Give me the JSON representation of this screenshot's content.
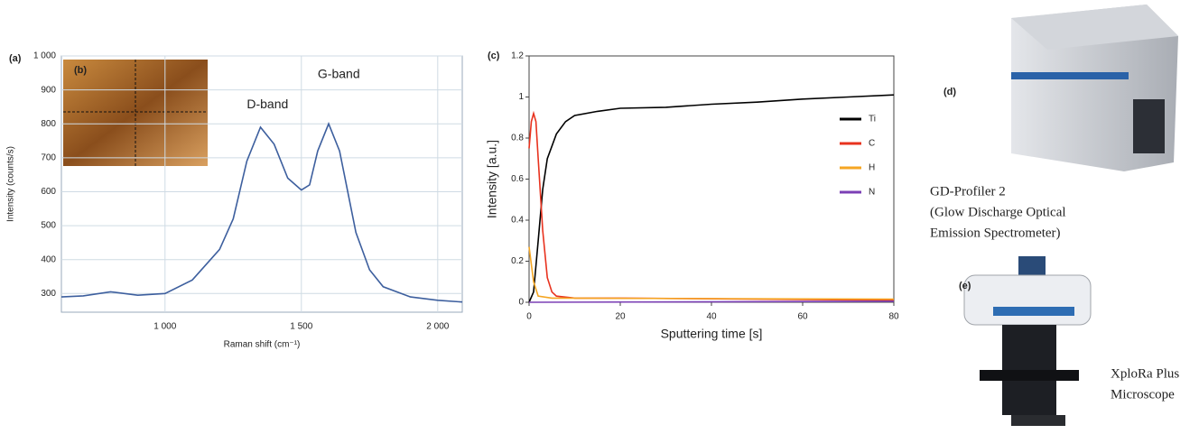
{
  "chart_data": [
    {
      "type": "line",
      "panel_label": "(a)",
      "inset_label": "(b)",
      "xlabel": "Raman shift (cm⁻¹)",
      "ylabel": "Intensity (counts/s)",
      "x": [
        620,
        700,
        800,
        900,
        1000,
        1100,
        1200,
        1250,
        1300,
        1350,
        1400,
        1450,
        1500,
        1530,
        1560,
        1600,
        1640,
        1700,
        1750,
        1800,
        1900,
        2000,
        2090
      ],
      "values": [
        290,
        293,
        305,
        295,
        300,
        340,
        430,
        520,
        690,
        790,
        740,
        640,
        605,
        620,
        720,
        800,
        720,
        480,
        370,
        320,
        290,
        280,
        275
      ],
      "color": "#3d5f9e",
      "xlim": [
        620,
        2090
      ],
      "ylim": [
        245,
        1000
      ],
      "xticks": [
        {
          "value": 1000,
          "label": "1 000"
        },
        {
          "value": 1500,
          "label": "1 500"
        },
        {
          "value": 2000,
          "label": "2 000"
        }
      ],
      "yticks": [
        300,
        400,
        500,
        600,
        700,
        800,
        900,
        {
          "value": 1000,
          "label": "1 000"
        }
      ],
      "grid": true,
      "annotations": [
        {
          "text": "D-band",
          "x": 1300,
          "y": 855
        },
        {
          "text": "G-band",
          "x": 1560,
          "y": 945
        }
      ]
    },
    {
      "type": "line",
      "panel_label": "(c)",
      "xlabel": "Sputtering time [s]",
      "ylabel": "Intensity [a.u.]",
      "xlim": [
        0,
        80
      ],
      "ylim": [
        0,
        1.2
      ],
      "xticks": [
        0,
        20,
        40,
        60,
        80
      ],
      "yticks": [
        0,
        0.2,
        0.4,
        0.6,
        0.8,
        1,
        1.2
      ],
      "grid": false,
      "legend": "right",
      "series": [
        {
          "name": "Ti",
          "color": "#000000",
          "x": [
            0,
            1,
            2,
            3,
            4,
            6,
            8,
            10,
            15,
            20,
            30,
            40,
            50,
            60,
            70,
            80
          ],
          "values": [
            0,
            0.05,
            0.3,
            0.55,
            0.7,
            0.82,
            0.88,
            0.91,
            0.93,
            0.945,
            0.95,
            0.965,
            0.975,
            0.99,
            1.0,
            1.01
          ]
        },
        {
          "name": "C",
          "color": "#e8321e",
          "x": [
            0,
            0.5,
            1,
            1.5,
            2,
            3,
            4,
            5,
            6,
            10,
            20,
            80
          ],
          "values": [
            0.75,
            0.88,
            0.92,
            0.88,
            0.7,
            0.35,
            0.12,
            0.05,
            0.03,
            0.02,
            0.02,
            0.01
          ]
        },
        {
          "name": "H",
          "color": "#f5a623",
          "x": [
            0,
            1,
            2,
            5,
            80
          ],
          "values": [
            0.27,
            0.1,
            0.03,
            0.02,
            0.015
          ]
        },
        {
          "name": "N",
          "color": "#7b3fb5",
          "x": [
            0,
            80
          ],
          "values": [
            0,
            0.005
          ]
        }
      ]
    }
  ],
  "panels": {
    "d": {
      "label": "(d)",
      "caption": [
        "GD-Profiler 2",
        "(Glow Discharge Optical",
        "Emission Spectrometer)"
      ]
    },
    "e": {
      "label": "(e)",
      "caption": [
        "XploRa Plus",
        "Microscope"
      ]
    }
  }
}
